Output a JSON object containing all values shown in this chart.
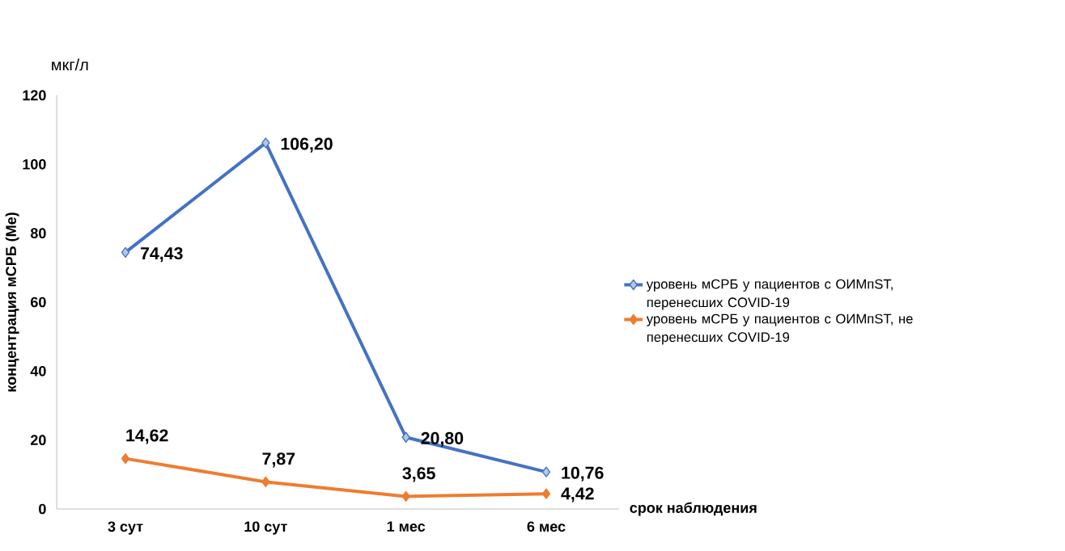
{
  "chart_data": {
    "type": "line",
    "ylabel": "концентрация мСРБ (Ме)",
    "xlabel": "срок наблюдения",
    "annotations": [
      "мкг/л"
    ],
    "categories": [
      "3 сут",
      "10 сут",
      "1 мес",
      "6 мес"
    ],
    "series": [
      {
        "name": "уровень мСРБ у пациентов с ОИМпST, перенесших COVID-19",
        "color": "#4472c4",
        "values": [
          74.43,
          106.2,
          20.8,
          10.76
        ],
        "value_labels": [
          "74,43",
          "106,20",
          "20,80",
          "10,76"
        ]
      },
      {
        "name": "уровень мСРБ у пациентов с ОИМпST, не перенесших COVID-19",
        "color": "#ed7d31",
        "values": [
          14.62,
          7.87,
          3.65,
          4.42
        ],
        "value_labels": [
          "14,62",
          "7,87",
          "3,65",
          "4,42"
        ]
      }
    ],
    "ylim": [
      0,
      120
    ],
    "yticks": [
      0,
      20,
      40,
      60,
      80,
      100,
      120
    ],
    "grid": false,
    "legend": "right",
    "marker": "diamond",
    "line_style": "solid"
  }
}
